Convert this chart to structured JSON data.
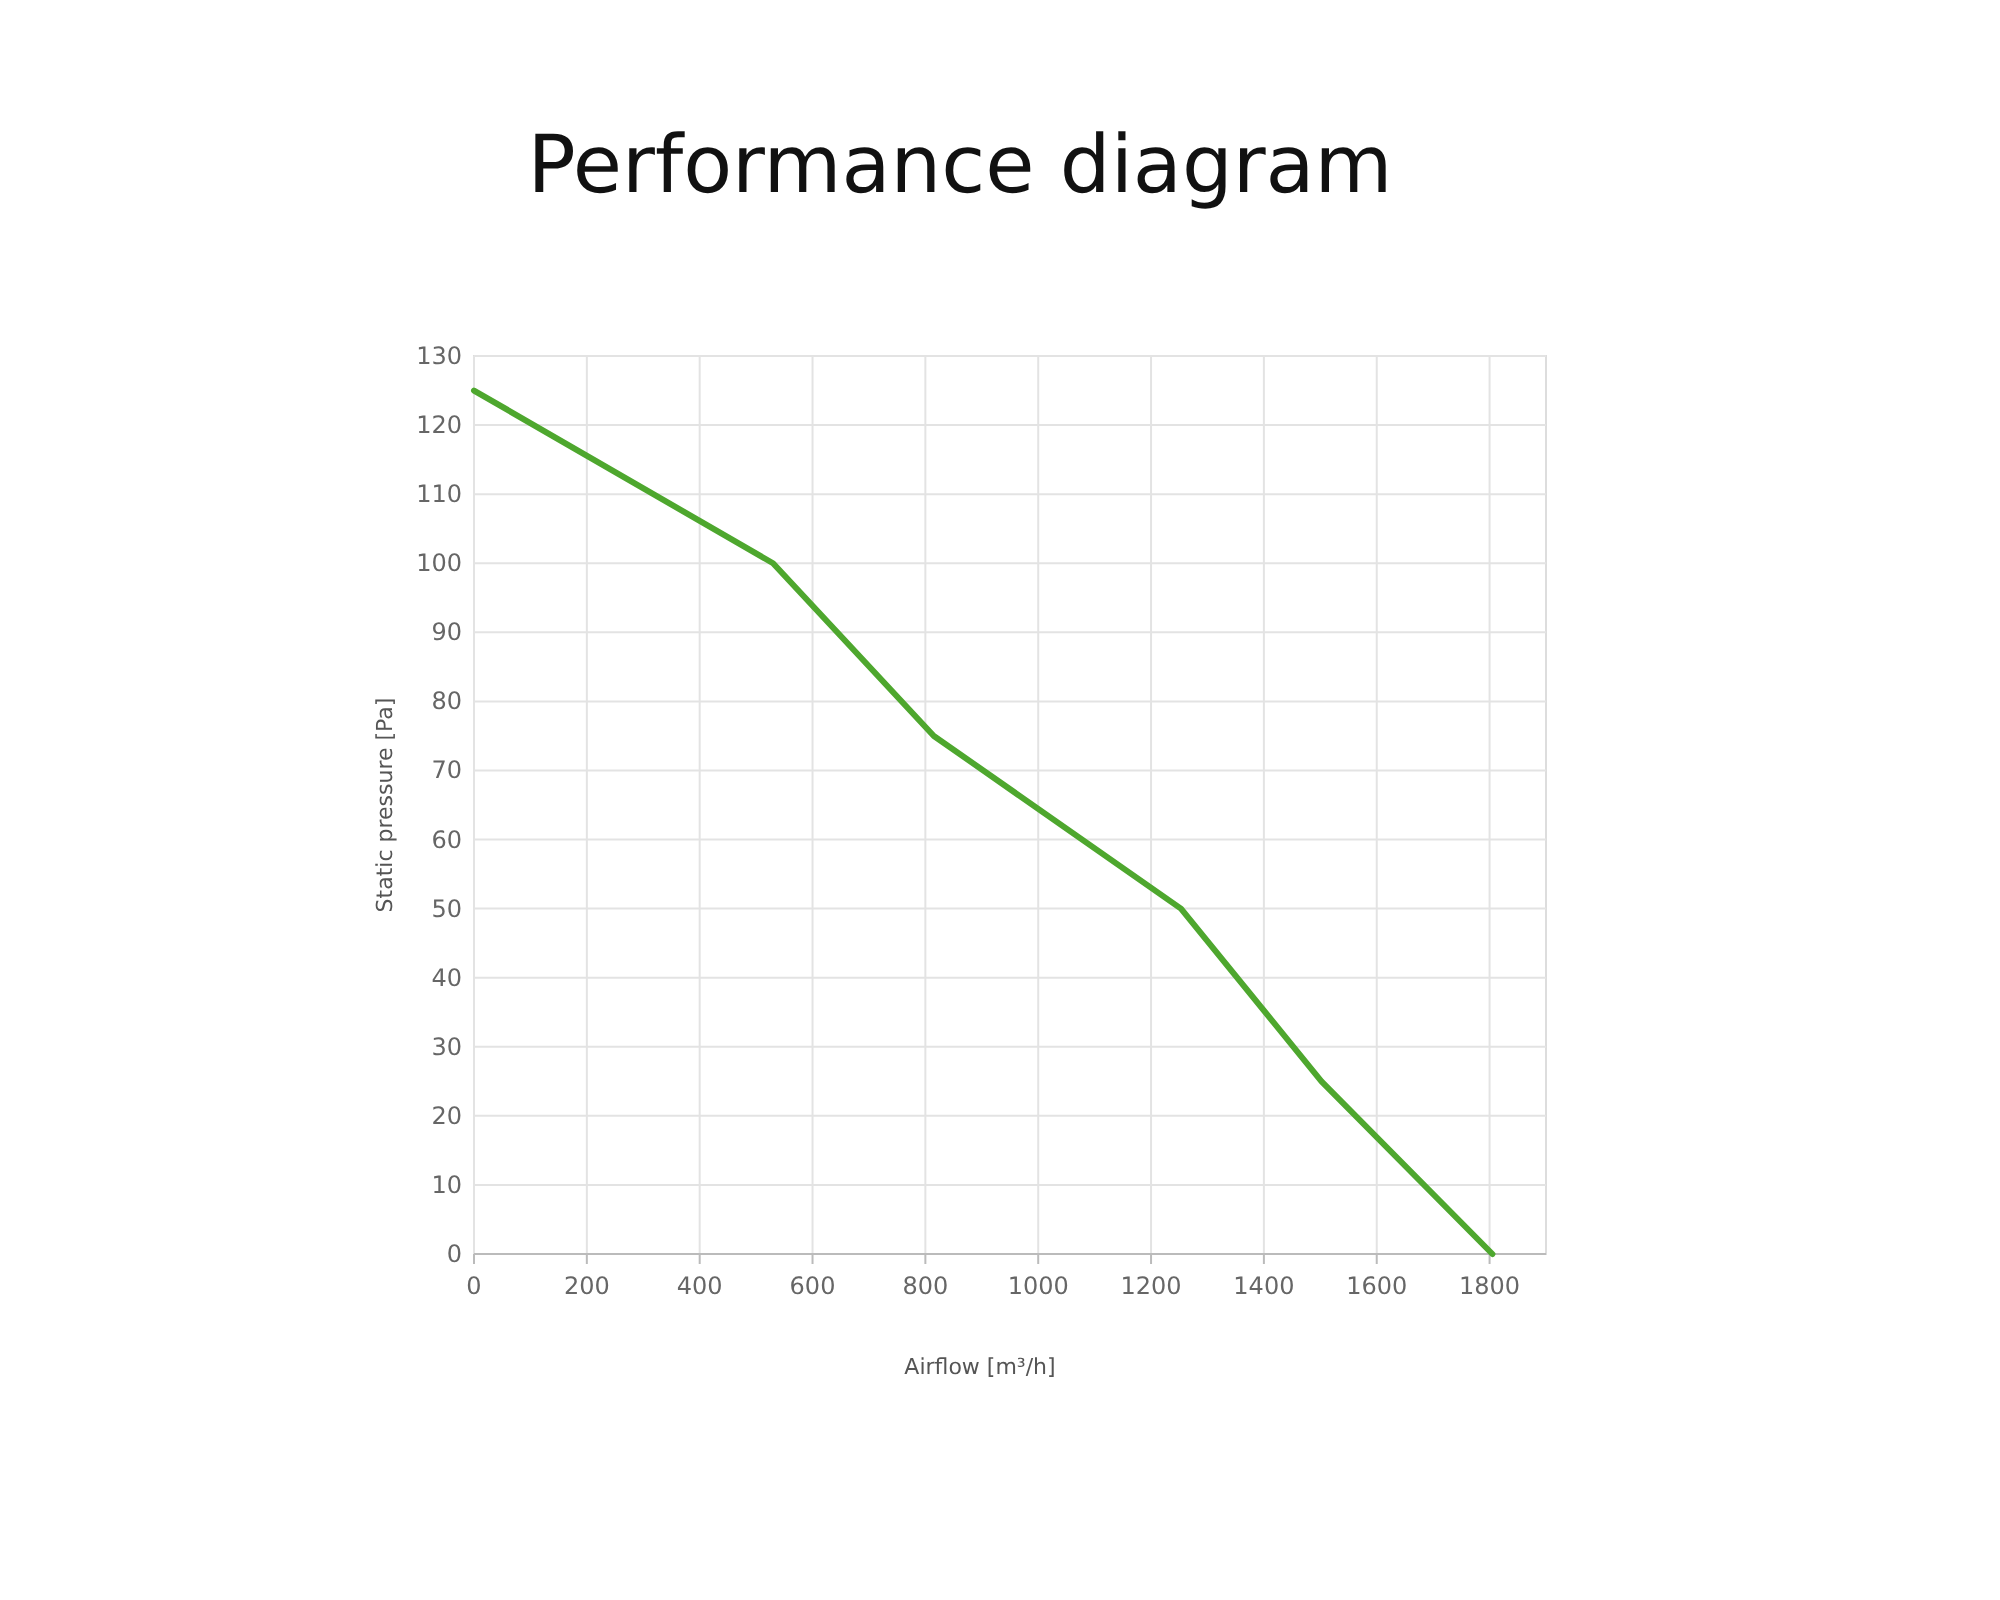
{
  "chart_data": {
    "type": "line",
    "title": "Performance diagram",
    "xlabel": "Airflow [m³/h]",
    "ylabel": "Static pressure [Pa]",
    "x": [
      0,
      530,
      815,
      1253,
      1502,
      1805
    ],
    "series": [
      {
        "color": "#4ea72e",
        "values": [
          125,
          100,
          75,
          50,
          25,
          0
        ]
      }
    ],
    "xlim": [
      0,
      1900
    ],
    "xticks": [
      0,
      200,
      400,
      600,
      800,
      1000,
      1200,
      1400,
      1600,
      1800
    ],
    "ylim": [
      0,
      130
    ],
    "yticks": [
      0,
      10,
      20,
      30,
      40,
      50,
      60,
      70,
      80,
      90,
      100,
      110,
      120,
      130
    ],
    "grid": true,
    "marker": "none",
    "line_style": "solid"
  }
}
